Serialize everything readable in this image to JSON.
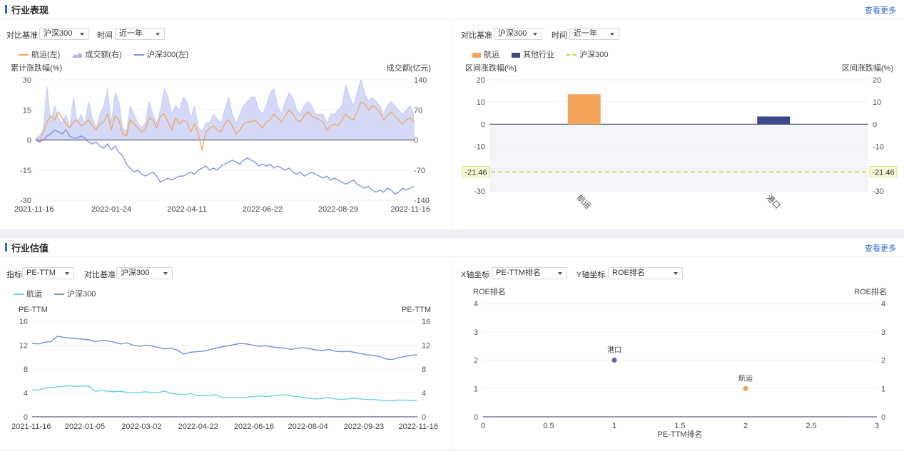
{
  "section1": {
    "title": "行业表现",
    "more": "查看更多",
    "left": {
      "compare_label": "对比基准",
      "compare_value": "沪深300",
      "time_label": "时间",
      "time_value": "近一年"
    },
    "right": {
      "compare_label": "对比基准",
      "compare_value": "沪深300",
      "time_label": "时间",
      "time_value": "近一年"
    }
  },
  "section2": {
    "title": "行业估值",
    "more": "查看更多",
    "left": {
      "metric_label": "指标",
      "metric_value": "PE-TTM",
      "compare_label": "对比基准",
      "compare_value": "沪深300"
    },
    "right": {
      "x_label": "X轴坐标",
      "x_value": "PE-TTM排名",
      "y_label": "Y轴坐标",
      "y_value": "ROE排名"
    }
  },
  "colors": {
    "accent": "#2e63d1",
    "shipping": "#f4a45a",
    "hs300": "#7f8be0",
    "volume": "#cdd2f6",
    "other_industry": "#3d4a8a",
    "benchmark_dash": "#c5d43b",
    "pe_shipping": "#6ad6d8"
  },
  "chart_data": [
    {
      "id": "perf-line",
      "type": "line",
      "legend": [
        "航运(左)",
        "成交额(右)",
        "沪深300(左)"
      ],
      "ylabel_left": "累计涨跌幅(%)",
      "ylabel_right": "成交额(亿元)",
      "ylim_left": [
        -30,
        30
      ],
      "yticks_left": [
        "30",
        "15",
        "0",
        "-15",
        "-30"
      ],
      "ylim_right": [
        -140,
        140
      ],
      "yticks_right": [
        "140",
        "70",
        "0",
        "-70",
        "-140"
      ],
      "xticks": [
        "2021-11-16",
        "2022-01-24",
        "2022-04-11",
        "2022-06-22",
        "2022-08-29",
        "2022-11-16"
      ],
      "x_at_ticks": [
        0,
        0.2,
        0.4,
        0.6,
        0.8,
        1.0
      ],
      "series": [
        {
          "name": "航运(左)",
          "axis": "left",
          "values": [
            0,
            -1,
            4,
            9,
            12,
            10,
            14,
            11,
            8,
            6,
            9,
            10,
            7,
            8,
            10,
            7,
            5,
            8,
            9,
            13,
            5,
            12,
            10,
            3,
            2,
            10,
            8,
            6,
            4,
            5,
            11,
            10,
            6,
            12,
            13,
            9,
            5,
            11,
            8,
            10,
            9,
            4,
            8,
            3,
            -5,
            4,
            6,
            7,
            5,
            4,
            8,
            10,
            7,
            3,
            5,
            8,
            9,
            9,
            10,
            8,
            6,
            9,
            10,
            13,
            11,
            9,
            12,
            15,
            13,
            10,
            9,
            12,
            14,
            12,
            11,
            10,
            9,
            5,
            7,
            8,
            7,
            10,
            13,
            11,
            10,
            14,
            19,
            18,
            15,
            17,
            16,
            14,
            10,
            12,
            14,
            12,
            10,
            8,
            10,
            11,
            9
          ]
        },
        {
          "name": "成交额(右)",
          "axis": "right",
          "type": "area",
          "values": [
            5,
            10,
            25,
            125,
            40,
            80,
            50,
            40,
            60,
            30,
            100,
            40,
            60,
            40,
            90,
            50,
            30,
            60,
            80,
            120,
            40,
            110,
            90,
            30,
            20,
            80,
            60,
            40,
            30,
            40,
            90,
            60,
            40,
            70,
            120,
            100,
            60,
            80,
            70,
            100,
            90,
            50,
            80,
            30,
            20,
            40,
            40,
            60,
            50,
            40,
            70,
            100,
            60,
            40,
            60,
            80,
            90,
            100,
            100,
            70,
            60,
            80,
            110,
            120,
            80,
            60,
            90,
            110,
            100,
            70,
            60,
            80,
            90,
            80,
            60,
            60,
            60,
            40,
            60,
            60,
            70,
            80,
            130,
            100,
            80,
            110,
            140,
            110,
            90,
            100,
            90,
            80,
            60,
            80,
            90,
            80,
            70,
            60,
            70,
            80,
            60
          ]
        },
        {
          "name": "沪深300(左)",
          "axis": "left",
          "values": [
            0,
            -1,
            0,
            2,
            3,
            5,
            4,
            3,
            5,
            2,
            1,
            1,
            2,
            1,
            -1,
            -2,
            -1,
            -3,
            -4,
            -2,
            -5,
            -3,
            -6,
            -8,
            -12,
            -14,
            -16,
            -15,
            -17,
            -18,
            -17,
            -16,
            -18,
            -21,
            -20,
            -19,
            -20,
            -19,
            -18,
            -18,
            -17,
            -16,
            -17,
            -15,
            -14,
            -13,
            -15,
            -14,
            -15,
            -13,
            -12,
            -11,
            -10,
            -11,
            -12,
            -10,
            -9,
            -10,
            -11,
            -13,
            -12,
            -13,
            -12,
            -14,
            -13,
            -14,
            -15,
            -14,
            -16,
            -17,
            -16,
            -18,
            -17,
            -16,
            -17,
            -18,
            -19,
            -18,
            -20,
            -19,
            -20,
            -21,
            -22,
            -21,
            -20,
            -22,
            -23,
            -24,
            -23,
            -25,
            -26,
            -25,
            -26,
            -24,
            -25,
            -27,
            -26,
            -24,
            -25,
            -24,
            -23
          ]
        }
      ]
    },
    {
      "id": "perf-bar",
      "type": "bar",
      "legend": [
        "航运",
        "其他行业",
        "沪深300"
      ],
      "ylabel_left": "区间涨跌幅(%)",
      "ylabel_right": "区间涨跌幅(%)",
      "ylim": [
        -30,
        20
      ],
      "yticks": [
        "20",
        "10",
        "0",
        "-10",
        "-20",
        "-30"
      ],
      "categories": [
        "航运",
        "港口"
      ],
      "values": [
        13.5,
        3.5
      ],
      "benchmark_value": -21.46,
      "benchmark_label": "-21.46"
    },
    {
      "id": "pe-line",
      "type": "line",
      "legend": [
        "航运",
        "沪深300"
      ],
      "ylabel_left": "PE-TTM",
      "ylabel_right": "PE-TTM",
      "ylim": [
        0,
        16
      ],
      "yticks": [
        "16",
        "12",
        "8",
        "4",
        "0"
      ],
      "xticks": [
        "2021-11-16",
        "2022-01-05",
        "2022-03-02",
        "2022-04-22",
        "2022-06-16",
        "2022-08-04",
        "2022-09-23",
        "2022-11-16"
      ],
      "x_at_ticks": [
        0,
        0.137,
        0.284,
        0.431,
        0.576,
        0.716,
        0.861,
        1.0
      ],
      "series": [
        {
          "name": "航运",
          "values": [
            4.5,
            4.5,
            4.8,
            4.9,
            5.0,
            5.1,
            5.2,
            5.1,
            5.2,
            5.1,
            4.3,
            4.4,
            4.3,
            4.2,
            4.3,
            4.1,
            4.0,
            4.1,
            4.2,
            4.0,
            4.1,
            4.3,
            3.9,
            3.8,
            3.7,
            3.9,
            3.6,
            3.5,
            3.6,
            3.7,
            3.3,
            3.2,
            3.3,
            3.2,
            3.3,
            3.4,
            3.5,
            3.4,
            3.5,
            3.6,
            3.7,
            3.5,
            3.4,
            3.2,
            3.1,
            3.0,
            3.1,
            3.2,
            3.0,
            2.9,
            3.0,
            3.1,
            3.0,
            2.9,
            2.9,
            2.8,
            2.7,
            2.7,
            2.8,
            2.8,
            2.7,
            2.8
          ]
        },
        {
          "name": "沪深300",
          "values": [
            12.3,
            12.2,
            12.5,
            12.6,
            13.5,
            13.3,
            13.2,
            13.1,
            13.0,
            12.9,
            12.6,
            12.8,
            12.7,
            12.5,
            12.2,
            12.4,
            12.0,
            11.8,
            12.0,
            11.9,
            11.6,
            11.4,
            11.5,
            11.2,
            10.5,
            10.8,
            10.9,
            11.0,
            11.2,
            11.5,
            11.7,
            11.9,
            12.1,
            12.3,
            12.2,
            12.0,
            11.8,
            11.9,
            11.7,
            11.6,
            11.5,
            11.3,
            11.5,
            11.6,
            11.4,
            11.2,
            11.1,
            11.3,
            11.0,
            10.9,
            11.0,
            10.8,
            10.6,
            10.4,
            10.3,
            10.1,
            9.7,
            9.6,
            9.9,
            10.1,
            10.3,
            10.4
          ]
        }
      ]
    },
    {
      "id": "rank-scatter",
      "type": "scatter",
      "xlabel": "PE-TTM排名",
      "ylabel_left": "ROE排名",
      "ylabel_right": "ROE排名",
      "xlim": [
        0,
        3
      ],
      "ylim": [
        0,
        4
      ],
      "xticks": [
        "0",
        "0.5",
        "1",
        "1.5",
        "2",
        "2.5",
        "3"
      ],
      "yticks": [
        "4",
        "3",
        "2",
        "1",
        "0"
      ],
      "points": [
        {
          "label": "港口",
          "x": 1,
          "y": 2,
          "color": "#5b64a8"
        },
        {
          "label": "航运",
          "x": 2,
          "y": 1,
          "color": "#f4a45a"
        }
      ]
    }
  ]
}
